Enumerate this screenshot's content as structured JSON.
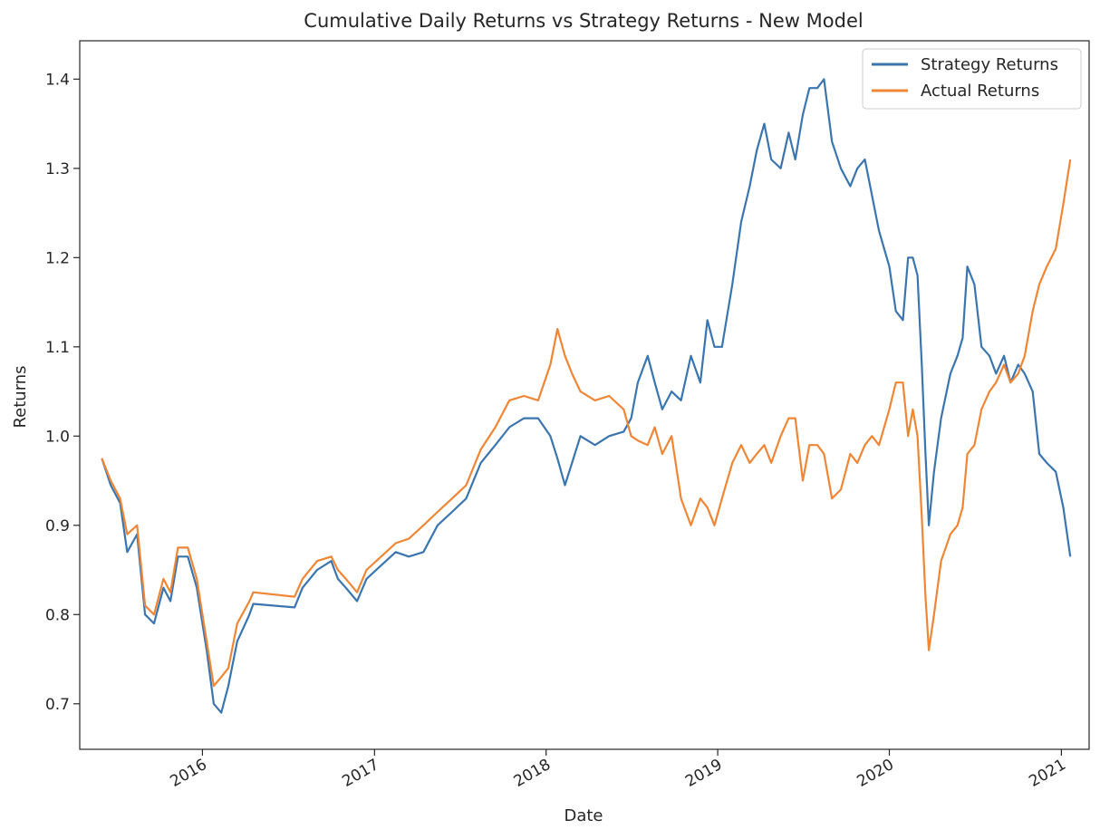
{
  "chart_data": {
    "type": "line",
    "title": "Cumulative Daily Returns vs Strategy Returns - New Model",
    "xlabel": "Date",
    "ylabel": "Returns",
    "xlim": [
      "2015-04-15",
      "2021-03-01"
    ],
    "ylim": [
      0.649,
      1.443
    ],
    "x_ticks": [
      "2016",
      "2017",
      "2018",
      "2019",
      "2020",
      "2021"
    ],
    "y_ticks": [
      "0.7",
      "0.8",
      "0.9",
      "1.0",
      "1.1",
      "1.2",
      "1.3",
      "1.4"
    ],
    "grid": false,
    "legend_position": "top-right",
    "series": [
      {
        "name": "Strategy Returns",
        "color": "#3b75af",
        "points": [
          [
            "2015-06-01",
            0.975
          ],
          [
            "2015-06-20",
            0.945
          ],
          [
            "2015-07-10",
            0.925
          ],
          [
            "2015-07-25",
            0.87
          ],
          [
            "2015-08-15",
            0.89
          ],
          [
            "2015-09-01",
            0.8
          ],
          [
            "2015-09-20",
            0.79
          ],
          [
            "2015-10-10",
            0.83
          ],
          [
            "2015-10-25",
            0.815
          ],
          [
            "2015-11-10",
            0.865
          ],
          [
            "2015-12-01",
            0.865
          ],
          [
            "2015-12-20",
            0.83
          ],
          [
            "2016-01-01",
            0.79
          ],
          [
            "2016-01-10",
            0.76
          ],
          [
            "2016-01-25",
            0.7
          ],
          [
            "2016-02-10",
            0.69
          ],
          [
            "2016-02-25",
            0.72
          ],
          [
            "2016-03-15",
            0.77
          ],
          [
            "2016-04-10",
            0.8
          ],
          [
            "2016-04-18",
            0.812
          ],
          [
            "2016-07-15",
            0.808
          ],
          [
            "2016-08-01",
            0.83
          ],
          [
            "2016-09-01",
            0.85
          ],
          [
            "2016-10-01",
            0.86
          ],
          [
            "2016-10-15",
            0.84
          ],
          [
            "2016-11-01",
            0.83
          ],
          [
            "2016-11-25",
            0.815
          ],
          [
            "2016-12-15",
            0.84
          ],
          [
            "2017-01-15",
            0.855
          ],
          [
            "2017-02-15",
            0.87
          ],
          [
            "2017-03-15",
            0.865
          ],
          [
            "2017-04-15",
            0.87
          ],
          [
            "2017-05-15",
            0.9
          ],
          [
            "2017-06-15",
            0.915
          ],
          [
            "2017-07-15",
            0.93
          ],
          [
            "2017-08-15",
            0.97
          ],
          [
            "2017-09-15",
            0.99
          ],
          [
            "2017-10-15",
            1.01
          ],
          [
            "2017-11-15",
            1.02
          ],
          [
            "2017-12-15",
            1.02
          ],
          [
            "2018-01-10",
            1.0
          ],
          [
            "2018-01-25",
            0.975
          ],
          [
            "2018-02-10",
            0.945
          ],
          [
            "2018-02-25",
            0.97
          ],
          [
            "2018-03-15",
            1.0
          ],
          [
            "2018-04-15",
            0.99
          ],
          [
            "2018-05-15",
            1.0
          ],
          [
            "2018-06-15",
            1.005
          ],
          [
            "2018-07-01",
            1.02
          ],
          [
            "2018-07-15",
            1.06
          ],
          [
            "2018-08-05",
            1.09
          ],
          [
            "2018-08-20",
            1.06
          ],
          [
            "2018-09-05",
            1.03
          ],
          [
            "2018-09-25",
            1.05
          ],
          [
            "2018-10-15",
            1.04
          ],
          [
            "2018-11-05",
            1.09
          ],
          [
            "2018-11-25",
            1.06
          ],
          [
            "2018-12-10",
            1.13
          ],
          [
            "2018-12-25",
            1.1
          ],
          [
            "2019-01-10",
            1.1
          ],
          [
            "2019-02-01",
            1.17
          ],
          [
            "2019-02-20",
            1.24
          ],
          [
            "2019-03-10",
            1.28
          ],
          [
            "2019-03-25",
            1.32
          ],
          [
            "2019-04-10",
            1.35
          ],
          [
            "2019-04-25",
            1.31
          ],
          [
            "2019-05-15",
            1.3
          ],
          [
            "2019-06-01",
            1.34
          ],
          [
            "2019-06-15",
            1.31
          ],
          [
            "2019-07-01",
            1.36
          ],
          [
            "2019-07-15",
            1.39
          ],
          [
            "2019-08-01",
            1.39
          ],
          [
            "2019-08-15",
            1.4
          ],
          [
            "2019-09-01",
            1.33
          ],
          [
            "2019-09-20",
            1.3
          ],
          [
            "2019-10-10",
            1.28
          ],
          [
            "2019-10-25",
            1.3
          ],
          [
            "2019-11-10",
            1.31
          ],
          [
            "2019-11-25",
            1.27
          ],
          [
            "2019-12-10",
            1.23
          ],
          [
            "2020-01-01",
            1.19
          ],
          [
            "2020-01-15",
            1.14
          ],
          [
            "2020-01-30",
            1.13
          ],
          [
            "2020-02-10",
            1.2
          ],
          [
            "2020-02-20",
            1.2
          ],
          [
            "2020-03-01",
            1.18
          ],
          [
            "2020-03-10",
            1.08
          ],
          [
            "2020-03-18",
            0.98
          ],
          [
            "2020-03-25",
            0.9
          ],
          [
            "2020-04-05",
            0.96
          ],
          [
            "2020-04-20",
            1.02
          ],
          [
            "2020-05-10",
            1.07
          ],
          [
            "2020-05-25",
            1.09
          ],
          [
            "2020-06-05",
            1.11
          ],
          [
            "2020-06-15",
            1.19
          ],
          [
            "2020-06-30",
            1.17
          ],
          [
            "2020-07-15",
            1.1
          ],
          [
            "2020-08-01",
            1.09
          ],
          [
            "2020-08-15",
            1.07
          ],
          [
            "2020-09-01",
            1.09
          ],
          [
            "2020-09-15",
            1.06
          ],
          [
            "2020-10-01",
            1.08
          ],
          [
            "2020-10-15",
            1.07
          ],
          [
            "2020-11-01",
            1.05
          ],
          [
            "2020-11-15",
            0.98
          ],
          [
            "2020-12-01",
            0.97
          ],
          [
            "2020-12-20",
            0.96
          ],
          [
            "2021-01-05",
            0.92
          ],
          [
            "2021-01-20",
            0.865
          ]
        ]
      },
      {
        "name": "Actual Returns",
        "color": "#ef8636",
        "points": [
          [
            "2015-06-01",
            0.975
          ],
          [
            "2015-06-20",
            0.95
          ],
          [
            "2015-07-10",
            0.93
          ],
          [
            "2015-07-25",
            0.89
          ],
          [
            "2015-08-15",
            0.9
          ],
          [
            "2015-09-01",
            0.81
          ],
          [
            "2015-09-20",
            0.8
          ],
          [
            "2015-10-10",
            0.84
          ],
          [
            "2015-10-25",
            0.825
          ],
          [
            "2015-11-10",
            0.875
          ],
          [
            "2015-12-01",
            0.875
          ],
          [
            "2015-12-20",
            0.84
          ],
          [
            "2016-01-01",
            0.8
          ],
          [
            "2016-01-10",
            0.77
          ],
          [
            "2016-01-25",
            0.72
          ],
          [
            "2016-02-10",
            0.73
          ],
          [
            "2016-02-25",
            0.74
          ],
          [
            "2016-03-15",
            0.79
          ],
          [
            "2016-04-10",
            0.815
          ],
          [
            "2016-04-18",
            0.825
          ],
          [
            "2016-07-15",
            0.82
          ],
          [
            "2016-08-01",
            0.84
          ],
          [
            "2016-09-01",
            0.86
          ],
          [
            "2016-10-01",
            0.865
          ],
          [
            "2016-10-15",
            0.85
          ],
          [
            "2016-11-01",
            0.84
          ],
          [
            "2016-11-25",
            0.825
          ],
          [
            "2016-12-15",
            0.85
          ],
          [
            "2017-01-15",
            0.865
          ],
          [
            "2017-02-15",
            0.88
          ],
          [
            "2017-03-15",
            0.885
          ],
          [
            "2017-04-15",
            0.9
          ],
          [
            "2017-05-15",
            0.915
          ],
          [
            "2017-06-15",
            0.93
          ],
          [
            "2017-07-15",
            0.945
          ],
          [
            "2017-08-15",
            0.985
          ],
          [
            "2017-09-15",
            1.01
          ],
          [
            "2017-10-15",
            1.04
          ],
          [
            "2017-11-15",
            1.045
          ],
          [
            "2017-12-15",
            1.04
          ],
          [
            "2018-01-10",
            1.08
          ],
          [
            "2018-01-25",
            1.12
          ],
          [
            "2018-02-10",
            1.09
          ],
          [
            "2018-02-25",
            1.07
          ],
          [
            "2018-03-15",
            1.05
          ],
          [
            "2018-04-15",
            1.04
          ],
          [
            "2018-05-15",
            1.045
          ],
          [
            "2018-06-15",
            1.03
          ],
          [
            "2018-07-01",
            1.0
          ],
          [
            "2018-07-15",
            0.995
          ],
          [
            "2018-08-05",
            0.99
          ],
          [
            "2018-08-20",
            1.01
          ],
          [
            "2018-09-05",
            0.98
          ],
          [
            "2018-09-25",
            1.0
          ],
          [
            "2018-10-15",
            0.93
          ],
          [
            "2018-11-05",
            0.9
          ],
          [
            "2018-11-25",
            0.93
          ],
          [
            "2018-12-10",
            0.92
          ],
          [
            "2018-12-25",
            0.9
          ],
          [
            "2019-01-10",
            0.93
          ],
          [
            "2019-02-01",
            0.97
          ],
          [
            "2019-02-20",
            0.99
          ],
          [
            "2019-03-10",
            0.97
          ],
          [
            "2019-03-25",
            0.98
          ],
          [
            "2019-04-10",
            0.99
          ],
          [
            "2019-04-25",
            0.97
          ],
          [
            "2019-05-15",
            1.0
          ],
          [
            "2019-06-01",
            1.02
          ],
          [
            "2019-06-15",
            1.02
          ],
          [
            "2019-07-01",
            0.95
          ],
          [
            "2019-07-15",
            0.99
          ],
          [
            "2019-08-01",
            0.99
          ],
          [
            "2019-08-15",
            0.98
          ],
          [
            "2019-09-01",
            0.93
          ],
          [
            "2019-09-20",
            0.94
          ],
          [
            "2019-10-10",
            0.98
          ],
          [
            "2019-10-25",
            0.97
          ],
          [
            "2019-11-10",
            0.99
          ],
          [
            "2019-11-25",
            1.0
          ],
          [
            "2019-12-10",
            0.99
          ],
          [
            "2020-01-01",
            1.03
          ],
          [
            "2020-01-15",
            1.06
          ],
          [
            "2020-01-30",
            1.06
          ],
          [
            "2020-02-10",
            1.0
          ],
          [
            "2020-02-20",
            1.03
          ],
          [
            "2020-03-01",
            1.0
          ],
          [
            "2020-03-10",
            0.91
          ],
          [
            "2020-03-18",
            0.82
          ],
          [
            "2020-03-25",
            0.76
          ],
          [
            "2020-04-05",
            0.8
          ],
          [
            "2020-04-20",
            0.86
          ],
          [
            "2020-05-10",
            0.89
          ],
          [
            "2020-05-25",
            0.9
          ],
          [
            "2020-06-05",
            0.92
          ],
          [
            "2020-06-15",
            0.98
          ],
          [
            "2020-06-30",
            0.99
          ],
          [
            "2020-07-15",
            1.03
          ],
          [
            "2020-08-01",
            1.05
          ],
          [
            "2020-08-15",
            1.06
          ],
          [
            "2020-09-01",
            1.08
          ],
          [
            "2020-09-15",
            1.06
          ],
          [
            "2020-10-01",
            1.07
          ],
          [
            "2020-10-15",
            1.09
          ],
          [
            "2020-11-01",
            1.14
          ],
          [
            "2020-11-15",
            1.17
          ],
          [
            "2020-12-01",
            1.19
          ],
          [
            "2020-12-20",
            1.21
          ],
          [
            "2021-01-05",
            1.26
          ],
          [
            "2021-01-20",
            1.31
          ]
        ]
      }
    ]
  }
}
